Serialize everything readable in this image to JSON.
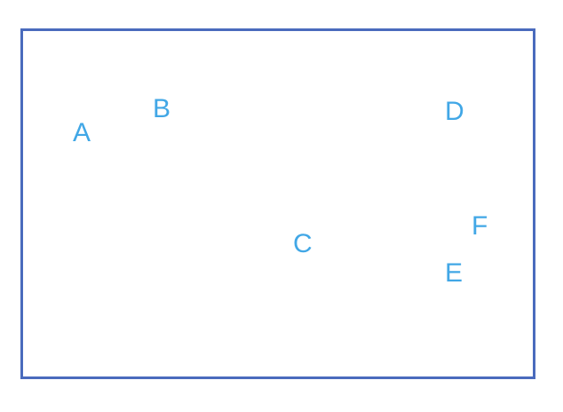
{
  "colors": {
    "frame_border": "#4a6bbd",
    "point_label": "#41a7e6",
    "background": "#ffffff"
  },
  "points": [
    {
      "label": "A"
    },
    {
      "label": "B"
    },
    {
      "label": "C"
    },
    {
      "label": "D"
    },
    {
      "label": "E"
    },
    {
      "label": "F"
    }
  ]
}
